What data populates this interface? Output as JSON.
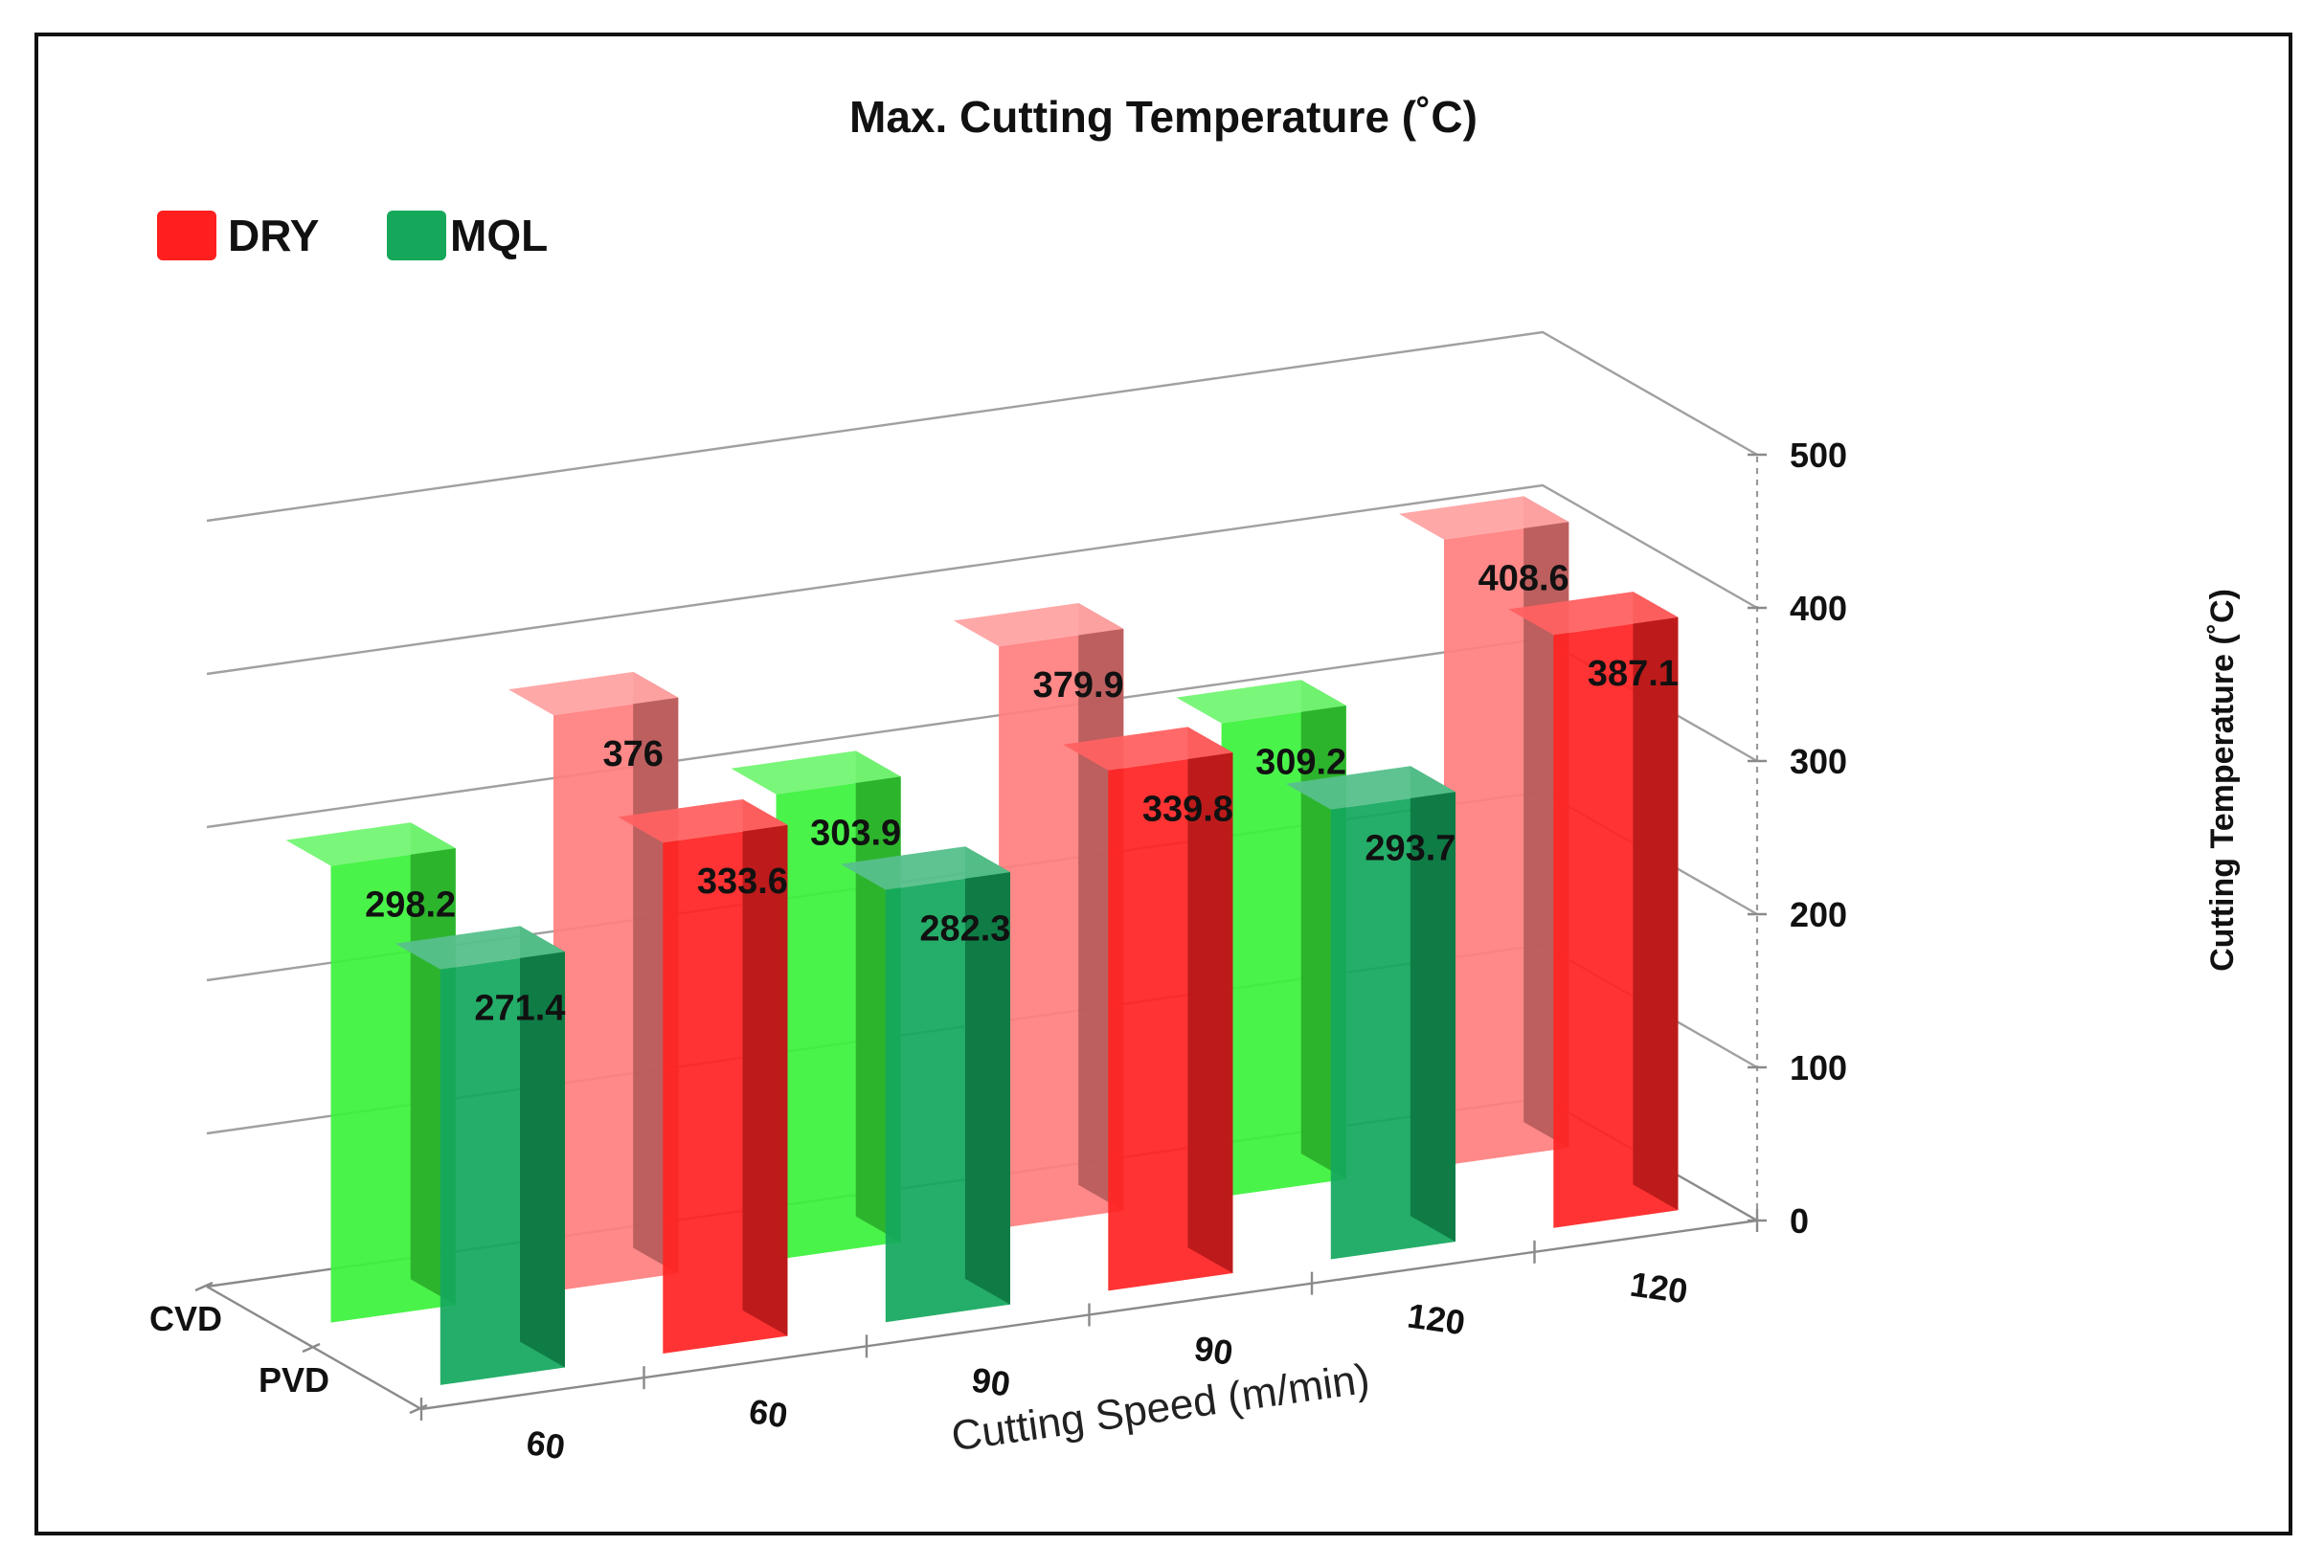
{
  "chart_data": {
    "type": "bar",
    "title": "Max. Cutting Temperature (˚C)",
    "xlabel": "Cutting Speed (m/min)",
    "ylabel": "Cutting Temperature (˚C)",
    "zlabel_rows": [
      "CVD",
      "PVD"
    ],
    "categories": [
      "60",
      "60",
      "90",
      "90",
      "120",
      "120"
    ],
    "legend": [
      {
        "name": "DRY",
        "color": "#ff1f1f"
      },
      {
        "name": "MQL",
        "color": "#15a85a"
      }
    ],
    "yticks": [
      0,
      100,
      200,
      300,
      400,
      500
    ],
    "ylim": [
      0,
      500
    ],
    "series": [
      {
        "name": "CVD",
        "values": [
          298.2,
          376,
          303.9,
          379.9,
          309.2,
          408.6
        ],
        "labels": [
          "298.2",
          "376",
          "303.9",
          "379.9",
          "309.2",
          "408.6"
        ],
        "conditions": [
          "MQL",
          "DRY",
          "MQL",
          "DRY",
          "MQL",
          "DRY"
        ]
      },
      {
        "name": "PVD",
        "values": [
          271.4,
          333.6,
          282.3,
          339.8,
          293.7,
          387.1
        ],
        "labels": [
          "271.4",
          "333.6",
          "282.3",
          "339.8",
          "293.7",
          "387.1"
        ],
        "conditions": [
          "MQL",
          "DRY",
          "MQL",
          "DRY",
          "MQL",
          "DRY"
        ]
      }
    ],
    "colors": {
      "cvd_mql": "#3cf23c",
      "cvd_dry": "#ff7f7f",
      "pvd_mql": "#14a85e",
      "pvd_dry": "#ff2424"
    }
  }
}
